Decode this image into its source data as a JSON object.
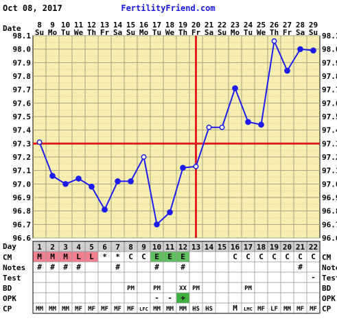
{
  "header": {
    "date": "Oct 08, 2017",
    "site": "FertilityFriend.com",
    "date_row_label": "Date",
    "temp_row_label": "Day"
  },
  "colors": {
    "background": "#ffffff",
    "plot_bg": "#f7efb0",
    "grid": "#a8a280",
    "text_dark": "#000000",
    "site_blue": "#1818e0",
    "line": "#1c1cf0",
    "coverline": "#e02020",
    "day_cell": "#d0d0d0",
    "menses": "#f08090",
    "cm_egg": "#60c060",
    "opk_pos": "#40b040"
  },
  "chart_data": {
    "type": "line",
    "title": "",
    "ylim": [
      96.6,
      98.1
    ],
    "y_ticks": [
      "98.1",
      "98.0",
      "97.9",
      "97.8",
      "97.7",
      "97.6",
      "97.5",
      "97.4",
      "97.3",
      "97.2",
      "97.1",
      "97.0",
      "96.9",
      "96.8",
      "96.7",
      "96.6"
    ],
    "dates": [
      "8",
      "9",
      "10",
      "11",
      "12",
      "13",
      "14",
      "15",
      "16",
      "17",
      "18",
      "19",
      "20",
      "21",
      "22",
      "23",
      "24",
      "25",
      "26",
      "27",
      "28",
      "29"
    ],
    "weekdays": [
      "Su",
      "Mo",
      "Tu",
      "We",
      "Th",
      "Fr",
      "Sa",
      "Su",
      "Mo",
      "Tu",
      "We",
      "Th",
      "Fr",
      "Sa",
      "Su",
      "Mo",
      "Tu",
      "We",
      "Th",
      "Fr",
      "Sa",
      "Su"
    ],
    "cycle_days": [
      "1",
      "2",
      "3",
      "4",
      "5",
      "6",
      "7",
      "8",
      "9",
      "10",
      "11",
      "12",
      "13",
      "14",
      "15",
      "16",
      "17",
      "18",
      "19",
      "20",
      "21",
      "22"
    ],
    "temps": [
      97.31,
      97.06,
      97.0,
      97.04,
      96.98,
      96.81,
      97.02,
      97.02,
      97.2,
      96.7,
      96.79,
      97.12,
      97.13,
      97.42,
      97.42,
      97.71,
      97.46,
      97.44,
      98.06,
      97.84,
      98.0,
      97.99
    ],
    "open_markers": [
      0,
      8,
      12,
      13,
      14,
      18
    ],
    "coverline": 97.3,
    "ovulation_day_index": 12,
    "grid": true
  },
  "rows": [
    {
      "label": "CM",
      "cells": [
        "M",
        "M",
        "M",
        "L",
        "L",
        "*",
        "*",
        "C",
        "C",
        "E",
        "E",
        "E",
        "",
        "",
        "",
        "C",
        "C",
        "C",
        "C",
        "C",
        "C",
        "C"
      ],
      "styles": [
        "menses",
        "menses",
        "menses",
        "menses",
        "menses",
        "",
        "",
        "",
        "",
        "egg",
        "egg",
        "egg",
        "",
        "",
        "",
        "",
        "",
        "",
        "",
        "",
        "",
        ""
      ]
    },
    {
      "label": "Notes",
      "cells": [
        "#",
        "#",
        "#",
        "#",
        "",
        "",
        "#",
        "",
        "",
        "#",
        "",
        "#",
        "",
        "",
        "",
        "",
        "",
        "",
        "",
        "",
        "#",
        ""
      ]
    },
    {
      "label": "Test",
      "cells": [
        "",
        "",
        "",
        "",
        "",
        "",
        "",
        "",
        "",
        "",
        "",
        "",
        "",
        "",
        "",
        "",
        "",
        "",
        "",
        "",
        "",
        "-"
      ]
    },
    {
      "label": "BD",
      "cells": [
        "",
        "",
        "",
        "",
        "",
        "",
        "",
        "PM",
        "",
        "PM",
        "",
        "XX",
        "PM",
        "",
        "",
        "",
        "PM",
        "",
        "",
        "",
        "",
        ""
      ]
    },
    {
      "label": "OPK",
      "cells": [
        "",
        "",
        "",
        "",
        "",
        "",
        "",
        "",
        "",
        "-",
        "-",
        "+",
        "",
        "",
        "",
        "",
        "",
        "",
        "",
        "",
        "",
        ""
      ],
      "styles": [
        "",
        "",
        "",
        "",
        "",
        "",
        "",
        "",
        "",
        "",
        "",
        "opk",
        "",
        "",
        "",
        "",
        "",
        "",
        "",
        "",
        "",
        ""
      ]
    },
    {
      "label": "CP",
      "cells": [
        "MM",
        "MM",
        "MM",
        "MF",
        "MF",
        "MF",
        "MF",
        "MF",
        "LFC",
        "MM",
        "MM",
        "MM",
        "HS",
        "HS",
        "",
        "M",
        "LMC",
        "MF",
        "LF",
        "MM",
        "MF",
        "MF"
      ]
    }
  ]
}
